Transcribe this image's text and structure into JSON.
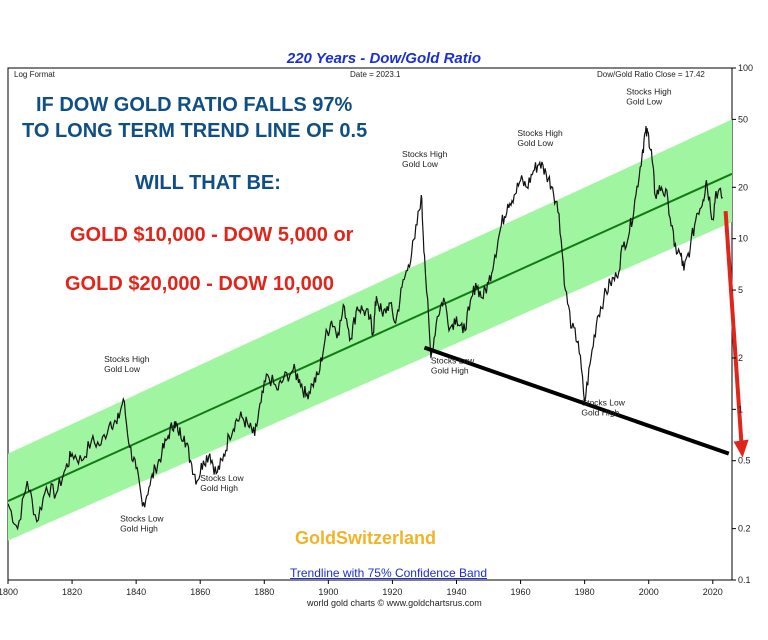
{
  "chart_data": {
    "type": "line",
    "title": "220 Years - Dow/Gold Ratio",
    "scale_label": "Log Format",
    "date_label": "Date = 2023.1",
    "close_label": "Dow/Gold Ratio Close = 17.42",
    "xlim": [
      1800,
      2026
    ],
    "ylim": [
      0.1,
      100
    ],
    "y_scale": "log",
    "x_ticks": [
      1800,
      1820,
      1840,
      1860,
      1880,
      1900,
      1920,
      1940,
      1960,
      1980,
      2000,
      2020
    ],
    "y_ticks": [
      {
        "value": 100,
        "label": "100"
      },
      {
        "value": 50,
        "label": "50"
      },
      {
        "value": 20,
        "label": "20"
      },
      {
        "value": 10,
        "label": "10"
      },
      {
        "value": 5,
        "label": "5"
      },
      {
        "value": 2,
        "label": "2"
      },
      {
        "value": 1,
        "label": "1"
      },
      {
        "value": 0.5,
        "label": "0.5"
      },
      {
        "value": 0.2,
        "label": "0.2"
      },
      {
        "value": 0.1,
        "label": "0.1"
      }
    ],
    "series": [
      {
        "values": [
          [
            1800,
            0.28
          ],
          [
            1803,
            0.2
          ],
          [
            1806,
            0.38
          ],
          [
            1809,
            0.22
          ],
          [
            1812,
            0.35
          ],
          [
            1815,
            0.32
          ],
          [
            1818,
            0.45
          ],
          [
            1820,
            0.55
          ],
          [
            1823,
            0.5
          ],
          [
            1826,
            0.65
          ],
          [
            1829,
            0.62
          ],
          [
            1832,
            0.85
          ],
          [
            1834,
            0.82
          ],
          [
            1836,
            1.15
          ],
          [
            1838,
            0.6
          ],
          [
            1840,
            0.45
          ],
          [
            1842,
            0.27
          ],
          [
            1844,
            0.35
          ],
          [
            1846,
            0.45
          ],
          [
            1848,
            0.55
          ],
          [
            1850,
            0.7
          ],
          [
            1852,
            0.85
          ],
          [
            1853,
            0.75
          ],
          [
            1855,
            0.7
          ],
          [
            1857,
            0.5
          ],
          [
            1859,
            0.38
          ],
          [
            1861,
            0.5
          ],
          [
            1863,
            0.55
          ],
          [
            1865,
            0.42
          ],
          [
            1867,
            0.5
          ],
          [
            1869,
            0.7
          ],
          [
            1871,
            0.85
          ],
          [
            1873,
            0.9
          ],
          [
            1875,
            0.8
          ],
          [
            1877,
            0.7
          ],
          [
            1879,
            1.1
          ],
          [
            1881,
            1.6
          ],
          [
            1884,
            1.3
          ],
          [
            1886,
            1.5
          ],
          [
            1889,
            1.7
          ],
          [
            1891,
            1.5
          ],
          [
            1893,
            1.2
          ],
          [
            1895,
            1.4
          ],
          [
            1897,
            1.6
          ],
          [
            1899,
            2.6
          ],
          [
            1901,
            3.3
          ],
          [
            1903,
            2.8
          ],
          [
            1905,
            4.0
          ],
          [
            1907,
            2.6
          ],
          [
            1909,
            4.0
          ],
          [
            1911,
            3.8
          ],
          [
            1913,
            3.4
          ],
          [
            1914,
            2.8
          ],
          [
            1915,
            4.6
          ],
          [
            1917,
            3.5
          ],
          [
            1919,
            4.2
          ],
          [
            1921,
            3.2
          ],
          [
            1923,
            5.2
          ],
          [
            1925,
            7.0
          ],
          [
            1927,
            10.0
          ],
          [
            1929,
            18.0
          ],
          [
            1930,
            8.0
          ],
          [
            1932,
            2.0
          ],
          [
            1934,
            3.5
          ],
          [
            1936,
            4.5
          ],
          [
            1938,
            3.0
          ],
          [
            1940,
            3.5
          ],
          [
            1942,
            2.8
          ],
          [
            1944,
            3.8
          ],
          [
            1946,
            5.5
          ],
          [
            1948,
            4.5
          ],
          [
            1950,
            5.5
          ],
          [
            1952,
            8.0
          ],
          [
            1954,
            12.0
          ],
          [
            1956,
            16.0
          ],
          [
            1958,
            18.0
          ],
          [
            1960,
            22.0
          ],
          [
            1962,
            20.0
          ],
          [
            1964,
            25.0
          ],
          [
            1966,
            28.0
          ],
          [
            1968,
            24.0
          ],
          [
            1970,
            20.0
          ],
          [
            1972,
            14.0
          ],
          [
            1974,
            5.0
          ],
          [
            1976,
            3.0
          ],
          [
            1978,
            2.5
          ],
          [
            1980,
            1.1
          ],
          [
            1982,
            2.0
          ],
          [
            1984,
            3.5
          ],
          [
            1986,
            4.5
          ],
          [
            1988,
            5.5
          ],
          [
            1990,
            6.0
          ],
          [
            1992,
            9.0
          ],
          [
            1994,
            11.0
          ],
          [
            1996,
            18.0
          ],
          [
            1998,
            32.0
          ],
          [
            1999,
            42.0
          ],
          [
            2000,
            40.0
          ],
          [
            2001,
            30.0
          ],
          [
            2002,
            18.0
          ],
          [
            2004,
            20.0
          ],
          [
            2006,
            17.0
          ],
          [
            2008,
            9.0
          ],
          [
            2010,
            8.0
          ],
          [
            2011,
            6.5
          ],
          [
            2013,
            9.0
          ],
          [
            2015,
            14.0
          ],
          [
            2017,
            17.0
          ],
          [
            2018,
            22.0
          ],
          [
            2020,
            13.0
          ],
          [
            2021,
            19.0
          ],
          [
            2023.1,
            17.42
          ]
        ]
      }
    ],
    "trend_line": [
      [
        1800,
        0.29
      ],
      [
        2026,
        24.0
      ]
    ],
    "band": {
      "lower": [
        [
          1800,
          0.17
        ],
        [
          2026,
          12.5
        ]
      ],
      "upper": [
        [
          1800,
          0.55
        ],
        [
          2026,
          50.0
        ]
      ]
    },
    "support_line": [
      [
        1930,
        2.3
      ],
      [
        2025,
        0.55
      ]
    ],
    "projection_arrow": [
      [
        2024,
        14.5
      ],
      [
        2029,
        0.55
      ]
    ],
    "annotations": [
      {
        "lines": [
          "Stocks High",
          "Gold Low"
        ],
        "x": 1830,
        "y": 1.9
      },
      {
        "lines": [
          "Stocks Low",
          "Gold High"
        ],
        "x": 1835,
        "y": 0.22
      },
      {
        "lines": [
          "Stocks Low",
          "Gold High"
        ],
        "x": 1860,
        "y": 0.38
      },
      {
        "lines": [
          "Stocks High",
          "Gold Low"
        ],
        "x": 1923,
        "y": 30.0
      },
      {
        "lines": [
          "Stocks Low",
          "Gold High"
        ],
        "x": 1932,
        "y": 1.85
      },
      {
        "lines": [
          "Stocks High",
          "Gold Low"
        ],
        "x": 1959,
        "y": 40.0
      },
      {
        "lines": [
          "Stocks Low",
          "Gold High"
        ],
        "x": 1979,
        "y": 1.05
      },
      {
        "lines": [
          "Stocks High",
          "Gold Low"
        ],
        "x": 1993,
        "y": 70.0
      }
    ],
    "legend": "Trendline with 75% Confidence Band",
    "source": "world gold charts © www.goldchartsrus.com"
  },
  "overlay": {
    "headline_1": "IF DOW GOLD RATIO FALLS 97%",
    "headline_2": "TO LONG TERM TREND LINE  OF 0.5",
    "question": "WILL THAT BE:",
    "scenario_1": "GOLD $10,000 - DOW 5,000 or",
    "scenario_2": "GOLD $20,000 - DOW 10,000",
    "brand": "GoldSwitzerland"
  },
  "colors": {
    "band": "#9ff5a0",
    "trend": "#127a12",
    "series": "#111111",
    "support": "#000000",
    "arrow": "#e0261b",
    "title": "#1a2fd8"
  }
}
